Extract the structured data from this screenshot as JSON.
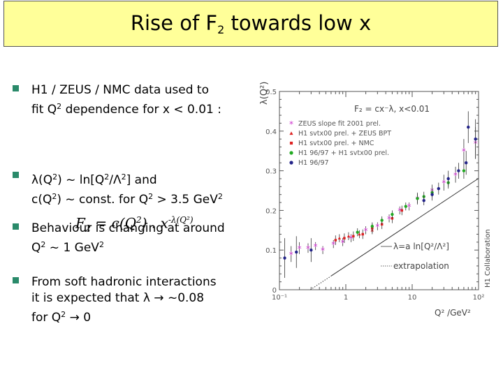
{
  "slide": {
    "title_main": "Rise of F",
    "title_sub": "2",
    "title_rest": " towards low x"
  },
  "bullets": {
    "b1_line1": "H1 / ZEUS / NMC data used to",
    "b1_line2a": "fit Q",
    "b1_line2sup": "2",
    "b1_line2b": " dependence for x < 0.01 :",
    "equation": {
      "lhs": "F",
      "lhs_sub": "2",
      "rhs_a": " = c(Q",
      "rhs_sup1": "2",
      "rhs_b": ") . x",
      "rhs_exp": "-λ(Q²)"
    },
    "b2_line1a": "λ(Q",
    "b2_line1sup1": "2",
    "b2_line1b": ") ~ ln[Q",
    "b2_line1sup2": "2",
    "b2_line1c": "/Λ",
    "b2_line1sup3": "2",
    "b2_line1d": "] and",
    "b2_line2a": "c(Q",
    "b2_line2sup1": "2",
    "b2_line2b": ") ~ const. for Q",
    "b2_line2sup2": "2",
    "b2_line2c": " > 3.5 GeV",
    "b2_line2sup3": "2",
    "b3_line1": "Behaviour is changing at around",
    "b3_line2a": "Q",
    "b3_line2sup": "2",
    "b3_line2b": " ~ 1 GeV",
    "b3_line2sup2": "2",
    "b4_line1": "From soft hadronic interactions",
    "b4_line2": "it is expected that λ → ~0.08",
    "b4_line3a": "for  Q",
    "b4_line3sup": "2",
    "b4_line3b": " → 0"
  },
  "plot_text": {
    "ylabel": "λ(Q²)",
    "xlabel": "Q² /GeV²",
    "formula": "F₂ = cx⁻λ, x<0.01",
    "collab": "H1 Collaboration",
    "line_label": "λ=a ln[Q²/Λ²]",
    "extrap_label": "extrapolation"
  },
  "chart_data": {
    "type": "scatter",
    "xscale": "log",
    "xlim": [
      0.1,
      100
    ],
    "ylim": [
      0,
      0.5
    ],
    "xticks": [
      "10⁻¹",
      "1",
      "10",
      "10²"
    ],
    "yticks": [
      "0",
      "0.1",
      "0.2",
      "0.3",
      "0.4",
      "0.5"
    ],
    "legend": [
      {
        "label": "ZEUS slope fit 2001 prel.",
        "marker": "star",
        "color": "#cc33cc"
      },
      {
        "label": "H1 svtx00 prel. + ZEUS BPT",
        "marker": "triangle",
        "color": "#dd2222"
      },
      {
        "label": "H1 svtx00 prel. + NMC",
        "marker": "square",
        "color": "#dd2222"
      },
      {
        "label": "H1 96/97 + H1 svtx00 prel.",
        "marker": "circle",
        "color": "#22aa22"
      },
      {
        "label": "H1 96/97",
        "marker": "circle",
        "color": "#222288"
      }
    ],
    "fit_line": {
      "a": 0.0481,
      "Lambda": 0.292,
      "x_from": 0.6,
      "x_to": 100
    },
    "series": [
      {
        "marker": "star",
        "color": "#cc33cc",
        "points": [
          [
            0.15,
            0.09,
            0.02
          ],
          [
            0.2,
            0.105,
            0.015
          ],
          [
            0.27,
            0.105,
            0.012
          ],
          [
            0.35,
            0.11,
            0.01
          ],
          [
            0.45,
            0.1,
            0.01
          ],
          [
            0.65,
            0.115,
            0.01
          ],
          [
            0.9,
            0.12,
            0.01
          ],
          [
            1.2,
            0.13,
            0.01
          ],
          [
            2,
            0.15,
            0.01
          ],
          [
            3,
            0.16,
            0.01
          ],
          [
            4.5,
            0.18,
            0.01
          ],
          [
            6.5,
            0.2,
            0.01
          ],
          [
            9,
            0.21,
            0.01
          ],
          [
            12,
            0.23,
            0.015
          ],
          [
            20,
            0.25,
            0.015
          ],
          [
            30,
            0.27,
            0.02
          ],
          [
            45,
            0.29,
            0.02
          ],
          [
            60,
            0.35,
            0.03
          ],
          [
            90,
            0.37,
            0.04
          ]
        ]
      },
      {
        "marker": "triangle",
        "color": "#dd2222",
        "points": [
          [
            0.8,
            0.13,
            0.01
          ],
          [
            1.1,
            0.135,
            0.01
          ],
          [
            1.6,
            0.14,
            0.01
          ],
          [
            2.5,
            0.15,
            0.01
          ]
        ]
      },
      {
        "marker": "square",
        "color": "#dd2222",
        "points": [
          [
            0.7,
            0.125,
            0.012
          ],
          [
            0.95,
            0.13,
            0.012
          ],
          [
            1.3,
            0.135,
            0.012
          ],
          [
            1.8,
            0.14,
            0.012
          ],
          [
            2.5,
            0.155,
            0.012
          ],
          [
            3.5,
            0.165,
            0.012
          ],
          [
            5,
            0.18,
            0.012
          ],
          [
            7,
            0.2,
            0.012
          ]
        ]
      },
      {
        "marker": "circle",
        "color": "#22aa22",
        "points": [
          [
            1.5,
            0.145,
            0.01
          ],
          [
            2.5,
            0.16,
            0.01
          ],
          [
            3.5,
            0.175,
            0.01
          ],
          [
            5,
            0.19,
            0.01
          ],
          [
            8,
            0.21,
            0.01
          ],
          [
            12,
            0.23,
            0.012
          ],
          [
            15,
            0.235,
            0.012
          ],
          [
            20,
            0.245,
            0.012
          ],
          [
            35,
            0.27,
            0.015
          ],
          [
            60,
            0.3,
            0.02
          ]
        ]
      },
      {
        "marker": "circle",
        "color": "#222288",
        "points": [
          [
            0.12,
            0.08,
            0.05
          ],
          [
            0.18,
            0.095,
            0.04
          ],
          [
            0.3,
            0.1,
            0.03
          ],
          [
            15,
            0.225,
            0.012
          ],
          [
            20,
            0.24,
            0.015
          ],
          [
            25,
            0.255,
            0.015
          ],
          [
            35,
            0.28,
            0.02
          ],
          [
            50,
            0.3,
            0.02
          ],
          [
            65,
            0.32,
            0.03
          ],
          [
            70,
            0.41,
            0.04
          ],
          [
            90,
            0.38,
            0.05
          ]
        ]
      }
    ]
  }
}
